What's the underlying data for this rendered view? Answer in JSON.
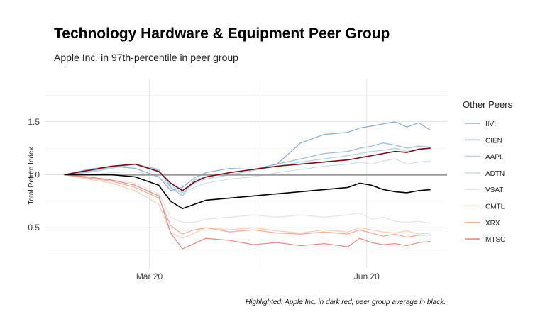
{
  "header": {
    "title": "Technology Hardware & Equipment Peer Group",
    "subtitle": "Apple Inc. in 97th-percentile in peer group"
  },
  "caption": "Highlighted: Apple Inc. in dark red; peer group average in black.",
  "chart_data": {
    "type": "line",
    "ylabel": "Total Return Index",
    "xlabel": "",
    "x_ticks": [
      "Mar 20",
      "Jun 20"
    ],
    "x_tick_positions": [
      36,
      128
    ],
    "y_ticks": [
      0.5,
      1.0,
      1.5
    ],
    "ylim": [
      0.12,
      1.9
    ],
    "xlim": [
      -8,
      162
    ],
    "reference_line": 1.0,
    "grid": true,
    "legend": {
      "title": "Other Peers",
      "position": "right"
    },
    "colors": {
      "IIVI": "#8fb0d3",
      "CIEN": "#9fbfdc",
      "AAPL": "#b6d3e5",
      "ADTN": "#cfe1ee",
      "VSAT": "#e6e6e6",
      "CMTL": "#f6d2bf",
      "XRX": "#f0b19a",
      "MTSC": "#e2908c",
      "highlight": "#7a0a14",
      "average": "#000000",
      "reference": "#9a9a9a"
    },
    "series": [
      {
        "name": "IIVI",
        "x": [
          0,
          10,
          20,
          30,
          40,
          45,
          50,
          55,
          60,
          70,
          80,
          90,
          100,
          110,
          120,
          125,
          130,
          135,
          140,
          145,
          150,
          155
        ],
        "values": [
          1.0,
          1.05,
          1.08,
          1.06,
          0.98,
          0.85,
          0.88,
          0.97,
          1.02,
          1.06,
          1.05,
          1.1,
          1.3,
          1.38,
          1.4,
          1.44,
          1.46,
          1.48,
          1.5,
          1.45,
          1.49,
          1.42
        ]
      },
      {
        "name": "CIEN",
        "x": [
          0,
          10,
          20,
          30,
          40,
          45,
          50,
          55,
          60,
          70,
          80,
          90,
          100,
          110,
          120,
          125,
          130,
          135,
          140,
          145,
          150,
          155
        ],
        "values": [
          1.0,
          1.03,
          1.07,
          1.1,
          1.05,
          0.88,
          0.8,
          0.95,
          0.98,
          1.02,
          1.05,
          1.1,
          1.15,
          1.2,
          1.22,
          1.25,
          1.27,
          1.3,
          1.28,
          1.25,
          1.27,
          1.26
        ]
      },
      {
        "name": "AAPL",
        "x": [
          0,
          10,
          20,
          30,
          40,
          45,
          50,
          55,
          60,
          70,
          80,
          90,
          100,
          110,
          120,
          125,
          130,
          135,
          140,
          145,
          150,
          155
        ],
        "values": [
          1.0,
          1.02,
          1.06,
          1.1,
          1.04,
          0.9,
          0.83,
          0.92,
          0.96,
          1.0,
          1.04,
          1.08,
          1.12,
          1.15,
          1.18,
          1.2,
          1.22,
          1.23,
          1.25,
          1.22,
          1.24,
          1.25
        ]
      },
      {
        "name": "ADTN",
        "x": [
          0,
          10,
          20,
          30,
          40,
          45,
          50,
          55,
          60,
          70,
          80,
          90,
          100,
          110,
          120,
          125,
          130,
          135,
          140,
          145,
          150,
          155
        ],
        "values": [
          1.0,
          1.0,
          1.02,
          1.03,
          0.98,
          0.88,
          0.82,
          0.88,
          0.92,
          0.96,
          0.98,
          1.02,
          1.05,
          1.08,
          1.1,
          1.12,
          1.1,
          1.13,
          1.15,
          1.1,
          1.12,
          1.13
        ]
      },
      {
        "name": "VSAT",
        "x": [
          0,
          10,
          20,
          30,
          40,
          45,
          50,
          55,
          60,
          70,
          80,
          90,
          100,
          110,
          120,
          125,
          130,
          135,
          140,
          145,
          150,
          155
        ],
        "values": [
          1.0,
          0.98,
          0.95,
          0.92,
          0.82,
          0.6,
          0.55,
          0.55,
          0.58,
          0.6,
          0.62,
          0.6,
          0.62,
          0.6,
          0.62,
          0.64,
          0.58,
          0.6,
          0.56,
          0.55,
          0.56,
          0.54
        ]
      },
      {
        "name": "CMTL",
        "x": [
          0,
          10,
          20,
          30,
          40,
          45,
          50,
          55,
          60,
          70,
          80,
          90,
          100,
          110,
          120,
          125,
          130,
          135,
          140,
          145,
          150,
          155
        ],
        "values": [
          1.0,
          0.96,
          0.92,
          0.85,
          0.72,
          0.45,
          0.4,
          0.45,
          0.5,
          0.48,
          0.5,
          0.47,
          0.45,
          0.48,
          0.46,
          0.5,
          0.48,
          0.46,
          0.45,
          0.47,
          0.44,
          0.45
        ]
      },
      {
        "name": "XRX",
        "x": [
          0,
          10,
          20,
          30,
          40,
          45,
          50,
          55,
          60,
          70,
          80,
          90,
          100,
          110,
          120,
          125,
          130,
          135,
          140,
          145,
          150,
          155
        ],
        "values": [
          1.0,
          0.97,
          0.94,
          0.88,
          0.78,
          0.52,
          0.44,
          0.48,
          0.5,
          0.46,
          0.48,
          0.45,
          0.44,
          0.46,
          0.44,
          0.48,
          0.45,
          0.42,
          0.44,
          0.41,
          0.43,
          0.43
        ]
      },
      {
        "name": "MTSC",
        "x": [
          0,
          10,
          20,
          30,
          40,
          45,
          50,
          55,
          60,
          70,
          80,
          90,
          100,
          110,
          120,
          125,
          130,
          135,
          140,
          145,
          150,
          155
        ],
        "values": [
          1.0,
          0.98,
          0.95,
          0.9,
          0.8,
          0.45,
          0.3,
          0.35,
          0.4,
          0.38,
          0.34,
          0.36,
          0.33,
          0.35,
          0.32,
          0.4,
          0.36,
          0.34,
          0.35,
          0.33,
          0.36,
          0.37
        ]
      },
      {
        "name": "Apple Inc.",
        "x": [
          0,
          10,
          20,
          30,
          40,
          45,
          50,
          55,
          60,
          70,
          80,
          90,
          100,
          110,
          120,
          125,
          130,
          135,
          140,
          145,
          150,
          155
        ],
        "values": [
          1.0,
          1.04,
          1.08,
          1.1,
          1.03,
          0.92,
          0.85,
          0.93,
          0.98,
          1.02,
          1.05,
          1.08,
          1.1,
          1.12,
          1.14,
          1.16,
          1.18,
          1.2,
          1.22,
          1.21,
          1.24,
          1.25
        ]
      },
      {
        "name": "Peer Average",
        "x": [
          0,
          10,
          20,
          30,
          40,
          45,
          50,
          55,
          60,
          70,
          80,
          90,
          100,
          110,
          120,
          125,
          130,
          135,
          140,
          145,
          150,
          155
        ],
        "values": [
          1.0,
          1.0,
          1.0,
          0.98,
          0.9,
          0.75,
          0.68,
          0.72,
          0.76,
          0.78,
          0.8,
          0.82,
          0.84,
          0.86,
          0.88,
          0.92,
          0.9,
          0.86,
          0.84,
          0.83,
          0.85,
          0.86
        ]
      }
    ]
  }
}
